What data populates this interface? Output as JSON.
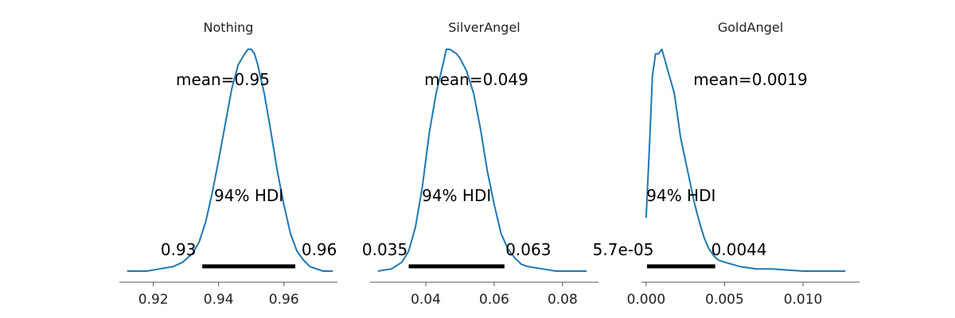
{
  "chart_data": [
    {
      "type": "line",
      "title": "Nothing",
      "xlim": [
        0.9096,
        0.9764
      ],
      "ticks": [
        0.92,
        0.94,
        0.96
      ],
      "tick_labels": [
        "0.92",
        "0.94",
        "0.96"
      ],
      "mean_label": "mean=0.95",
      "hdi_label": "94% HDI",
      "hdi": [
        0.935,
        0.9635
      ],
      "hdi_low_label": "0.93",
      "hdi_high_label": "0.96",
      "density": {
        "x": [
          0.912,
          0.918,
          0.922,
          0.926,
          0.929,
          0.932,
          0.934,
          0.936,
          0.938,
          0.94,
          0.942,
          0.944,
          0.946,
          0.948,
          0.949,
          0.95,
          0.951,
          0.952,
          0.954,
          0.956,
          0.958,
          0.96,
          0.962,
          0.964,
          0.966,
          0.968,
          0.97,
          0.972,
          0.975
        ],
        "y": [
          0.0,
          0.0,
          0.01,
          0.02,
          0.04,
          0.08,
          0.13,
          0.22,
          0.35,
          0.5,
          0.66,
          0.82,
          0.93,
          0.98,
          1.0,
          1.0,
          0.98,
          0.93,
          0.8,
          0.63,
          0.45,
          0.3,
          0.17,
          0.09,
          0.05,
          0.02,
          0.01,
          0.0,
          0.0
        ]
      }
    },
    {
      "type": "line",
      "title": "SilverAngel",
      "xlim": [
        0.0237,
        0.0905
      ],
      "ticks": [
        0.04,
        0.06,
        0.08
      ],
      "tick_labels": [
        "0.04",
        "0.06",
        "0.08"
      ],
      "mean_label": "mean=0.049",
      "hdi_label": "94% HDI",
      "hdi": [
        0.035,
        0.063
      ],
      "hdi_low_label": "0.035",
      "hdi_high_label": "0.063",
      "density": {
        "x": [
          0.026,
          0.03,
          0.033,
          0.035,
          0.037,
          0.039,
          0.041,
          0.043,
          0.045,
          0.046,
          0.047,
          0.048,
          0.049,
          0.05,
          0.052,
          0.054,
          0.056,
          0.058,
          0.06,
          0.062,
          0.064,
          0.066,
          0.068,
          0.07,
          0.074,
          0.078,
          0.082,
          0.087
        ],
        "y": [
          0.0,
          0.01,
          0.04,
          0.09,
          0.2,
          0.38,
          0.62,
          0.8,
          0.93,
          1.0,
          1.0,
          0.99,
          0.98,
          0.96,
          0.9,
          0.8,
          0.64,
          0.45,
          0.3,
          0.17,
          0.1,
          0.06,
          0.03,
          0.02,
          0.01,
          0.0,
          0.0,
          0.0
        ]
      }
    },
    {
      "type": "line",
      "title": "GoldAngel",
      "xlim": [
        -0.0003,
        0.0136
      ],
      "ticks": [
        0.0,
        0.005,
        0.01
      ],
      "tick_labels": [
        "0.000",
        "0.005",
        "0.010"
      ],
      "mean_label": "mean=0.0019",
      "hdi_label": "94% HDI",
      "hdi": [
        5.7e-05,
        0.0044
      ],
      "hdi_low_label": "5.7e-05",
      "hdi_high_label": "0.0044",
      "density": {
        "x": [
          0.0,
          0.0002,
          0.0004,
          0.0006,
          0.0008,
          0.001,
          0.0012,
          0.0014,
          0.0016,
          0.0018,
          0.002,
          0.0022,
          0.0025,
          0.0028,
          0.0031,
          0.0034,
          0.0037,
          0.004,
          0.0043,
          0.0046,
          0.005,
          0.0055,
          0.006,
          0.007,
          0.008,
          0.009,
          0.01,
          0.011,
          0.0127
        ],
        "y": [
          0.24,
          0.55,
          0.88,
          0.98,
          0.98,
          1.0,
          0.95,
          0.9,
          0.85,
          0.8,
          0.7,
          0.6,
          0.5,
          0.4,
          0.3,
          0.22,
          0.15,
          0.1,
          0.07,
          0.05,
          0.04,
          0.03,
          0.02,
          0.01,
          0.01,
          0.005,
          0.0,
          0.0,
          0.0
        ]
      }
    }
  ]
}
